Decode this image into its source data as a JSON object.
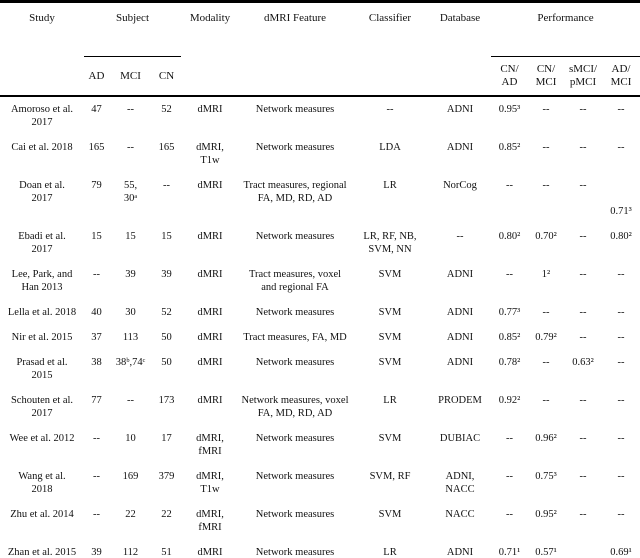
{
  "table": {
    "header": {
      "study": "Study",
      "subject": "Subject",
      "modality": "Modality",
      "feature": "dMRI Feature",
      "classifier": "Classifier",
      "database": "Database",
      "performance": "Performance",
      "subject_sub": {
        "ad": "AD",
        "mci": "MCI",
        "cn": "CN"
      },
      "performance_sub": {
        "cn_ad": "CN/\nAD",
        "cn_mci": "CN/\nMCI",
        "smci_pmci": "sMCI/\npMCI",
        "ad_mci": "AD/\nMCI"
      }
    },
    "rows": [
      {
        "study": "Amoroso et al.\n2017",
        "ad": "47",
        "mci": "--",
        "cn": "52",
        "modality": "dMRI",
        "feature": "Network measures",
        "classifier": "--",
        "database": "ADNI",
        "cn_ad": "0.95³",
        "cn_mci": "--",
        "smci_pmci": "--",
        "ad_mci": "--"
      },
      {
        "study": "Cai et al. 2018",
        "ad": "165",
        "mci": "--",
        "cn": "165",
        "modality": "dMRI,\nT1w",
        "feature": "Network measures",
        "classifier": "LDA",
        "database": "ADNI",
        "cn_ad": "0.85²",
        "cn_mci": "--",
        "smci_pmci": "--",
        "ad_mci": "--"
      },
      {
        "study": "Doan et al.\n2017",
        "ad": "79",
        "mci": "55,\n30ᵃ",
        "cn": "--",
        "modality": "dMRI",
        "feature": "Tract measures, regional\nFA, MD, RD, AD",
        "classifier": "LR",
        "database": "NorCog",
        "cn_ad": "--",
        "cn_mci": "--",
        "smci_pmci": "--",
        "ad_mci": "\n\n0.71³"
      },
      {
        "study": "Ebadi et al.\n2017",
        "ad": "15",
        "mci": "15",
        "cn": "15",
        "modality": "dMRI",
        "feature": "Network measures",
        "classifier": "LR, RF, NB,\nSVM, NN",
        "database": "--",
        "cn_ad": "0.80²",
        "cn_mci": "0.70²",
        "smci_pmci": "--",
        "ad_mci": "0.80²"
      },
      {
        "study": "Lee, Park, and\nHan 2013",
        "ad": "--",
        "mci": "39",
        "cn": "39",
        "modality": "dMRI",
        "feature": "Tract measures, voxel\nand regional FA",
        "classifier": "SVM",
        "database": "ADNI",
        "cn_ad": "--",
        "cn_mci": "1²",
        "smci_pmci": "--",
        "ad_mci": "--"
      },
      {
        "study": "Lella et al. 2018",
        "ad": "40",
        "mci": "30",
        "cn": "52",
        "modality": "dMRI",
        "feature": "Network measures",
        "classifier": "SVM",
        "database": "ADNI",
        "cn_ad": "0.77³",
        "cn_mci": "--",
        "smci_pmci": "--",
        "ad_mci": "--"
      },
      {
        "study": "Nir et al. 2015",
        "ad": "37",
        "mci": "113",
        "cn": "50",
        "modality": "dMRI",
        "feature": "Tract measures, FA, MD",
        "classifier": "SVM",
        "database": "ADNI",
        "cn_ad": "0.85²",
        "cn_mci": "0.79²",
        "smci_pmci": "--",
        "ad_mci": "--"
      },
      {
        "study": "Prasad et al.\n2015",
        "ad": "38",
        "mci": "38ᵇ,74ᶜ",
        "cn": "50",
        "modality": "dMRI",
        "feature": "Network measures",
        "classifier": "SVM",
        "database": "ADNI",
        "cn_ad": "0.78²",
        "cn_mci": "--",
        "smci_pmci": "0.63²",
        "ad_mci": "--"
      },
      {
        "study": "Schouten et al.\n2017",
        "ad": "77",
        "mci": "--",
        "cn": "173",
        "modality": "dMRI",
        "feature": "Network measures, voxel\nFA, MD, RD, AD",
        "classifier": "LR",
        "database": "PRODEM",
        "cn_ad": "0.92²",
        "cn_mci": "--",
        "smci_pmci": "--",
        "ad_mci": "--"
      },
      {
        "study": "Wee et al. 2012",
        "ad": "--",
        "mci": "10",
        "cn": "17",
        "modality": "dMRI,\nfMRI",
        "feature": "Network measures",
        "classifier": "SVM",
        "database": "DUBIAC",
        "cn_ad": "--",
        "cn_mci": "0.96²",
        "smci_pmci": "--",
        "ad_mci": "--"
      },
      {
        "study": "Wang et al.\n2018",
        "ad": "--",
        "mci": "169",
        "cn": "379",
        "modality": "dMRI,\nT1w",
        "feature": "Network measures",
        "classifier": "SVM, RF",
        "database": "ADNI,\nNACC",
        "cn_ad": "--",
        "cn_mci": "0.75³",
        "smci_pmci": "--",
        "ad_mci": "--"
      },
      {
        "study": "Zhu et al. 2014",
        "ad": "--",
        "mci": "22",
        "cn": "22",
        "modality": "dMRI,\nfMRI",
        "feature": "Network measures",
        "classifier": "SVM",
        "database": "NACC",
        "cn_ad": "--",
        "cn_mci": "0.95²",
        "smci_pmci": "--",
        "ad_mci": "--"
      },
      {
        "study": "Zhan et al. 2015",
        "ad": "39",
        "mci": "112",
        "cn": "51",
        "modality": "dMRI",
        "feature": "Network measures",
        "classifier": "LR",
        "database": "ADNI",
        "cn_ad": "0.71¹",
        "cn_mci": "0.57¹",
        "smci_pmci": "",
        "ad_mci": "0.69¹"
      }
    ]
  },
  "colors": {
    "background": "#ffffff",
    "text": "#111111",
    "rule": "#000000"
  }
}
